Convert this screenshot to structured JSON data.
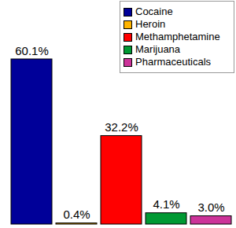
{
  "chart_data": {
    "type": "bar",
    "categories": [
      "Cocaine",
      "Heroin",
      "Methamphetamine",
      "Marijuana",
      "Pharmaceuticals"
    ],
    "values": [
      60.1,
      0.4,
      32.2,
      4.1,
      3.0
    ],
    "value_labels": [
      "60.1%",
      "0.4%",
      "32.2%",
      "4.1%",
      "3.0%"
    ],
    "colors": [
      "#000099",
      "#ffb400",
      "#ff0000",
      "#009933",
      "#cc3399"
    ],
    "data_labels": true,
    "tick_labels": false,
    "legend": "top-right"
  }
}
